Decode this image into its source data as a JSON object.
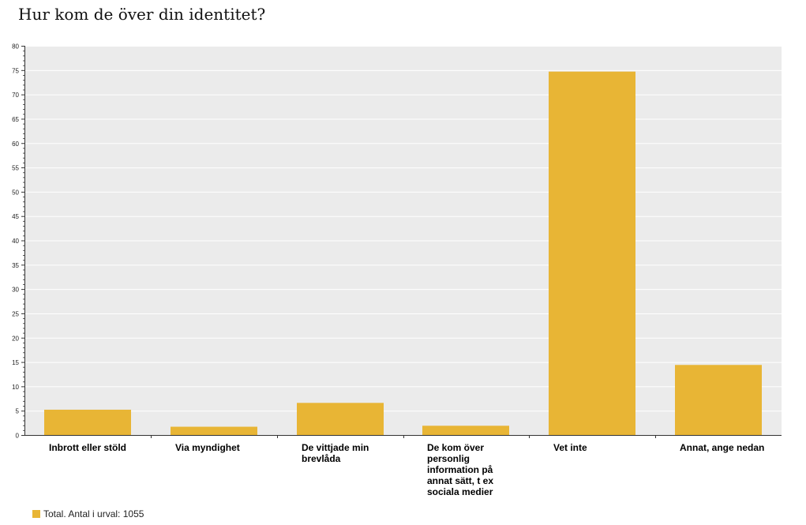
{
  "chart_data": {
    "type": "bar",
    "title": "Hur kom de över din identitet?",
    "categories": [
      "Inbrott eller stöld",
      "Via myndighet",
      "De vittjade min brevlåda",
      "De kom över personlig information på annat sätt, t ex sociala medier",
      "Vet inte",
      "Annat, ange nedan"
    ],
    "series": [
      {
        "name": "Total. Antal i urval: 1055",
        "values": [
          5.2,
          1.7,
          6.6,
          1.9,
          74.7,
          14.4
        ]
      }
    ],
    "ylim": [
      0,
      80
    ],
    "ytick_step": 5,
    "grid": true,
    "legend": "bottom-left",
    "colors": {
      "bar": "#e8b535",
      "plot_bg": "#ebebeb",
      "grid": "#ffffff"
    }
  }
}
